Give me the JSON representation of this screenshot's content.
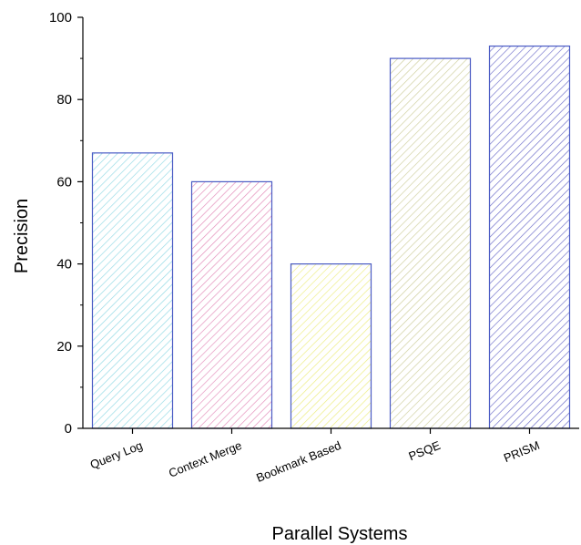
{
  "chart_data": {
    "type": "bar",
    "title": "",
    "xlabel": "Parallel Systems",
    "ylabel": "Precision",
    "categories": [
      "Query Log",
      "Context Merge",
      "Bookmark Based",
      "PSQE",
      "PRISM"
    ],
    "values": [
      67,
      60,
      40,
      90,
      93
    ],
    "ylim": [
      0,
      100
    ],
    "yticks": [
      "0",
      "20",
      "40",
      "60",
      "80",
      "100"
    ],
    "ytick_values": [
      0,
      20,
      40,
      60,
      80,
      100
    ],
    "grid": false,
    "legend": "none",
    "bar_fill": "diagonal-hatch",
    "bar_edge_color": "#4a5bc4",
    "bar_colors": [
      "#8fd8e4",
      "#e28ab8",
      "#ecec7c",
      "#cdcd9a",
      "#6a6ac8"
    ]
  }
}
